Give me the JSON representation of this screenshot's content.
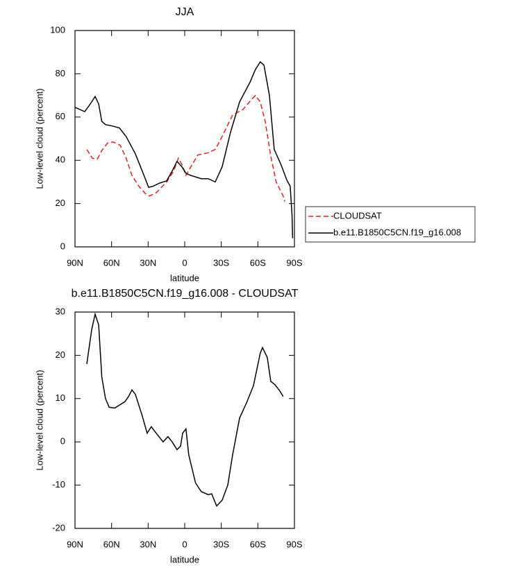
{
  "chart_data": [
    {
      "type": "line",
      "title": "JJA",
      "xlabel": "latitude",
      "ylabel": "Low-level cloud (percent)",
      "xlim": [
        90,
        -90
      ],
      "xticks": [
        {
          "value": 90,
          "label": "90N"
        },
        {
          "value": 60,
          "label": "60N"
        },
        {
          "value": 30,
          "label": "30N"
        },
        0,
        {
          "value": -30,
          "label": "30S"
        },
        {
          "value": -60,
          "label": "60S"
        },
        {
          "value": -90,
          "label": "90S"
        }
      ],
      "ylim": [
        0,
        100
      ],
      "yticks": [
        0,
        20,
        40,
        60,
        80,
        100
      ],
      "legend": "right",
      "series": [
        {
          "name": "CLOUDSAT",
          "color": "#e0201b",
          "line_style": "dashed",
          "x": [
            80.3,
            75.8,
            71.8,
            68,
            63.2,
            58.7,
            53,
            48,
            43.3,
            37.6,
            32,
            29,
            23.4,
            14.8,
            9.1,
            5.2,
            2.3,
            -1,
            -5,
            -10.8,
            -19.3,
            -25,
            -30.7,
            -39.3,
            -47.8,
            -54.6,
            -58,
            -62,
            -66,
            -70.6,
            -75,
            -80.8,
            -82
          ],
          "values": [
            45,
            41,
            40.5,
            44.5,
            48,
            48.5,
            47,
            41,
            33,
            28,
            24.5,
            23.5,
            25,
            30,
            35,
            41,
            38,
            33,
            37,
            42.5,
            43.5,
            45,
            51,
            61,
            63.5,
            68,
            70,
            67,
            58,
            42,
            30,
            23.5,
            21
          ]
        },
        {
          "name": "b.e11.B1850C5CN.f19_g16.008",
          "color": "#000000",
          "line_style": "solid",
          "x": [
            90,
            82,
            77.5,
            73.5,
            70.6,
            68,
            65,
            60.4,
            53.6,
            48,
            40.5,
            34.8,
            29.6,
            26,
            20.5,
            14.8,
            10.3,
            6.3,
            2.3,
            -1,
            -5,
            -13.6,
            -19.3,
            -25,
            -30.7,
            -37.6,
            -45,
            -53.5,
            -58,
            -62,
            -65,
            -69.5,
            -73.4,
            -79,
            -83.7,
            -86.5,
            -88,
            -88.5
          ],
          "values": [
            64.5,
            62.5,
            66,
            69.5,
            66,
            58,
            56.5,
            56,
            55,
            51,
            43,
            35,
            27.5,
            28,
            29.5,
            30.5,
            35,
            39.5,
            37,
            34,
            33,
            31.5,
            31.5,
            30,
            37,
            53,
            67,
            76,
            82,
            85.5,
            84,
            70,
            45,
            38,
            31,
            28,
            15,
            4
          ]
        }
      ]
    },
    {
      "type": "line",
      "title": "b.e11.B1850C5CN.f19_g16.008 - CLOUDSAT",
      "xlabel": "latitude",
      "ylabel": "Low-level cloud (percent)",
      "xlim": [
        90,
        -90
      ],
      "xticks": [
        {
          "value": 90,
          "label": "90N"
        },
        {
          "value": 60,
          "label": "60N"
        },
        {
          "value": 30,
          "label": "30N"
        },
        0,
        {
          "value": -30,
          "label": "30S"
        },
        {
          "value": -60,
          "label": "60S"
        },
        {
          "value": -90,
          "label": "90S"
        }
      ],
      "ylim": [
        -20,
        30
      ],
      "yticks": [
        -20,
        -10,
        0,
        10,
        20,
        30
      ],
      "series": [
        {
          "color": "#000000",
          "line_style": "solid",
          "x": [
            80.3,
            76.3,
            73.5,
            70.6,
            68,
            65,
            62,
            57.5,
            53.6,
            49,
            46,
            43.3,
            40.5,
            34.8,
            30.8,
            27.4,
            23.4,
            17.7,
            13.7,
            10.3,
            6.3,
            3.4,
            1.7,
            -1,
            -3.3,
            -8.9,
            -13.6,
            -19.3,
            -22.1,
            -26.2,
            -30.7,
            -35.3,
            -39.3,
            -45,
            -50.7,
            -56.4,
            -62,
            -63.8,
            -67.7,
            -70.6,
            -74,
            -77.4,
            -80.8
          ],
          "values": [
            18,
            26,
            29.5,
            27,
            15,
            10,
            8,
            7.8,
            8.5,
            9.3,
            10.5,
            12,
            11,
            6,
            2,
            3.5,
            2,
            0,
            1.2,
            0,
            -1.8,
            -1,
            2,
            3,
            -3,
            -9.5,
            -11.5,
            -12.2,
            -12,
            -14.8,
            -13.5,
            -10,
            -3,
            5.5,
            9,
            13,
            20.5,
            21.8,
            19.5,
            14,
            13.2,
            12,
            10.5
          ]
        }
      ]
    }
  ]
}
